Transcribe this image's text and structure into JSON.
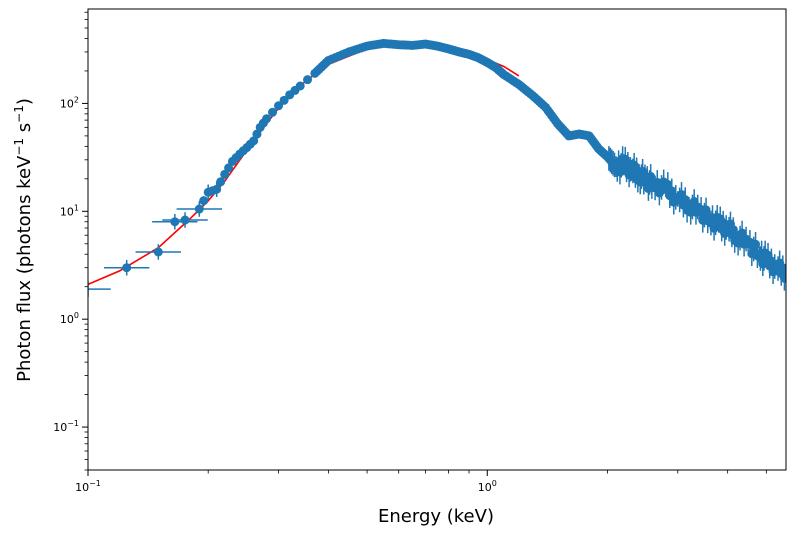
{
  "chart_data": {
    "type": "scatter",
    "title": "",
    "xlabel": "Energy (keV)",
    "ylabel": {
      "prefix": "Photon flux (photons keV",
      "sup1": "−1",
      "mid": " s",
      "sup2": "−1",
      "suffix": ")"
    },
    "xscale": "log",
    "yscale": "log",
    "xlim": [
      0.1,
      5.6
    ],
    "ylim": [
      0.04,
      750
    ],
    "x_major_ticks": [
      {
        "value": 0.1,
        "base": "10",
        "exp": "−1"
      },
      {
        "value": 1,
        "base": "10",
        "exp": "0"
      }
    ],
    "y_major_ticks": [
      {
        "value": 0.1,
        "base": "10",
        "exp": "−1"
      },
      {
        "value": 1,
        "base": "10",
        "exp": "0"
      },
      {
        "value": 10,
        "base": "10",
        "exp": "1"
      },
      {
        "value": 100,
        "base": "10",
        "exp": "2"
      }
    ],
    "grid": false,
    "legend": "none",
    "colors": {
      "data": "#1f77b4",
      "model": "#ff0000"
    },
    "series": [
      {
        "type": "errorbar-scatter",
        "x": [
          0.1,
          0.125,
          0.15,
          0.165,
          0.175,
          0.19,
          0.2,
          0.21,
          0.22,
          0.23,
          0.24,
          0.25,
          0.26,
          0.27,
          0.28,
          0.3,
          0.32,
          0.34,
          0.37,
          0.4,
          0.45,
          0.5,
          0.55,
          0.6,
          0.65,
          0.7,
          0.75,
          0.8,
          0.85,
          0.9,
          0.95,
          1.0,
          1.05,
          1.1,
          1.2,
          1.3,
          1.4,
          1.5,
          1.6,
          1.7,
          1.8,
          1.9,
          2.0,
          2.1,
          2.2,
          2.3,
          2.4,
          2.5,
          2.6,
          2.8,
          3.0,
          3.2,
          3.4,
          3.6,
          3.8,
          4.0,
          4.2,
          4.5,
          4.8,
          5.0,
          5.3,
          5.6
        ],
        "y": [
          1.9,
          3.0,
          4.2,
          8.0,
          8.3,
          10.5,
          15.0,
          16.0,
          22.0,
          29.0,
          34.0,
          39.0,
          45.0,
          60.0,
          72.0,
          95.0,
          120.0,
          145.0,
          190.0,
          250.0,
          300.0,
          340.0,
          360.0,
          350.0,
          345.0,
          355.0,
          340.0,
          320.0,
          300.0,
          285.0,
          265.0,
          240.0,
          215.0,
          185.0,
          150.0,
          118.0,
          92.0,
          65.0,
          50.0,
          52.0,
          50.0,
          38.0,
          32.0,
          26.0,
          27.0,
          24.0,
          22.0,
          19.0,
          18.0,
          16.0,
          13.0,
          11.5,
          10.0,
          8.5,
          7.5,
          7.0,
          6.0,
          5.0,
          4.0,
          3.5,
          3.0,
          2.7
        ]
      },
      {
        "type": "line",
        "x": [
          0.1,
          0.12,
          0.15,
          0.18,
          0.2,
          0.22,
          0.25,
          0.28,
          0.3,
          0.35,
          0.4,
          0.5,
          0.6,
          0.7,
          0.8,
          0.9,
          1.0,
          1.1,
          1.2
        ],
        "y": [
          2.1,
          2.8,
          4.6,
          8.5,
          12.5,
          19.0,
          37.0,
          65.0,
          90.0,
          160.0,
          230.0,
          320.0,
          350.0,
          350.0,
          325.0,
          295.0,
          255.0,
          220.0,
          180.0
        ]
      }
    ]
  }
}
